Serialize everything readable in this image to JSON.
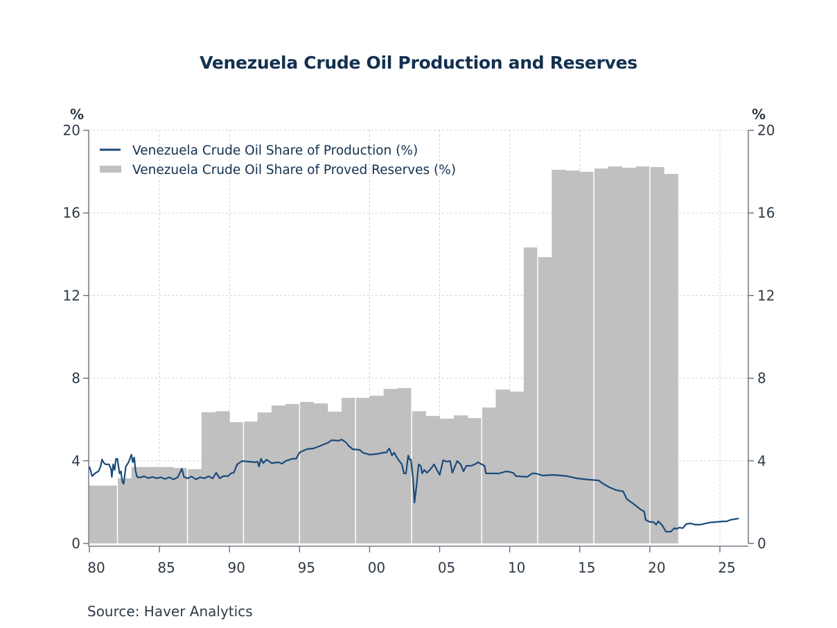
{
  "chart_data": {
    "type": "bar+line",
    "title": "Venezuela Crude Oil Production and Reserves",
    "source": "Source:  Haver Analytics",
    "left_axis_unit": "%",
    "right_axis_unit": "%",
    "ylim": [
      0,
      20
    ],
    "yticks": [
      0,
      4,
      8,
      12,
      16,
      20
    ],
    "ytick_labels": [
      "0",
      "4",
      "8",
      "12",
      "16",
      "20"
    ],
    "xlim": [
      1980,
      2027
    ],
    "xticks": [
      1980,
      1985,
      1990,
      1995,
      2000,
      2005,
      2010,
      2015,
      2020,
      2025
    ],
    "xtick_labels": [
      "80",
      "85",
      "90",
      "95",
      "00",
      "05",
      "10",
      "15",
      "20",
      "25"
    ],
    "grid": true,
    "legend_placement": "top-left",
    "colors": {
      "production": "#1a4a7a",
      "reserves": "#c0c0c0",
      "axis": "#5a6470",
      "grid": "#d0d0d0",
      "title": "#13304f"
    },
    "series": [
      {
        "name": "Venezuela Crude Oil Share of Production (%)",
        "type": "line",
        "points": [
          [
            1980.0,
            3.72
          ],
          [
            1980.2,
            3.26
          ],
          [
            1980.45,
            3.42
          ],
          [
            1980.65,
            3.49
          ],
          [
            1980.8,
            3.72
          ],
          [
            1980.9,
            4.06
          ],
          [
            1981.05,
            3.89
          ],
          [
            1981.15,
            3.83
          ],
          [
            1981.4,
            3.83
          ],
          [
            1981.55,
            3.6
          ],
          [
            1981.6,
            3.22
          ],
          [
            1981.7,
            3.83
          ],
          [
            1981.8,
            3.56
          ],
          [
            1981.9,
            4.1
          ],
          [
            1982.0,
            4.1
          ],
          [
            1982.15,
            3.39
          ],
          [
            1982.25,
            3.49
          ],
          [
            1982.35,
            2.99
          ],
          [
            1982.45,
            2.89
          ],
          [
            1982.6,
            3.72
          ],
          [
            1982.8,
            3.93
          ],
          [
            1983.0,
            4.3
          ],
          [
            1983.1,
            3.93
          ],
          [
            1983.2,
            4.16
          ],
          [
            1983.3,
            3.49
          ],
          [
            1983.4,
            3.22
          ],
          [
            1983.6,
            3.19
          ],
          [
            1983.9,
            3.25
          ],
          [
            1984.2,
            3.16
          ],
          [
            1984.5,
            3.22
          ],
          [
            1984.8,
            3.15
          ],
          [
            1985.1,
            3.2
          ],
          [
            1985.4,
            3.12
          ],
          [
            1985.7,
            3.2
          ],
          [
            1986.0,
            3.1
          ],
          [
            1986.3,
            3.2
          ],
          [
            1986.6,
            3.62
          ],
          [
            1986.75,
            3.22
          ],
          [
            1987.0,
            3.15
          ],
          [
            1987.3,
            3.24
          ],
          [
            1987.6,
            3.1
          ],
          [
            1987.9,
            3.2
          ],
          [
            1988.2,
            3.15
          ],
          [
            1988.5,
            3.25
          ],
          [
            1988.8,
            3.15
          ],
          [
            1989.05,
            3.42
          ],
          [
            1989.3,
            3.15
          ],
          [
            1989.55,
            3.26
          ],
          [
            1989.9,
            3.26
          ],
          [
            1990.1,
            3.39
          ],
          [
            1990.3,
            3.42
          ],
          [
            1990.55,
            3.83
          ],
          [
            1990.9,
            3.99
          ],
          [
            1991.4,
            3.96
          ],
          [
            1991.8,
            3.93
          ],
          [
            1992.0,
            3.96
          ],
          [
            1992.1,
            3.72
          ],
          [
            1992.25,
            4.1
          ],
          [
            1992.4,
            3.89
          ],
          [
            1992.65,
            4.06
          ],
          [
            1993.0,
            3.89
          ],
          [
            1993.5,
            3.93
          ],
          [
            1993.75,
            3.86
          ],
          [
            1994.0,
            3.99
          ],
          [
            1994.5,
            4.1
          ],
          [
            1994.75,
            4.1
          ],
          [
            1995.0,
            4.4
          ],
          [
            1995.5,
            4.56
          ],
          [
            1996.0,
            4.6
          ],
          [
            1996.5,
            4.73
          ],
          [
            1997.0,
            4.87
          ],
          [
            1997.3,
            5.0
          ],
          [
            1997.8,
            4.97
          ],
          [
            1998.0,
            5.03
          ],
          [
            1998.3,
            4.9
          ],
          [
            1998.5,
            4.73
          ],
          [
            1998.8,
            4.56
          ],
          [
            1999.3,
            4.53
          ],
          [
            1999.5,
            4.4
          ],
          [
            2000.0,
            4.3
          ],
          [
            2000.5,
            4.33
          ],
          [
            2001.0,
            4.4
          ],
          [
            2001.2,
            4.4
          ],
          [
            2001.4,
            4.6
          ],
          [
            2001.6,
            4.26
          ],
          [
            2001.75,
            4.4
          ],
          [
            2002.0,
            4.1
          ],
          [
            2002.3,
            3.83
          ],
          [
            2002.45,
            3.39
          ],
          [
            2002.6,
            3.39
          ],
          [
            2002.75,
            4.26
          ],
          [
            2002.85,
            4.06
          ],
          [
            2002.95,
            4.06
          ],
          [
            2003.1,
            3.15
          ],
          [
            2003.2,
            1.98
          ],
          [
            2003.35,
            2.82
          ],
          [
            2003.5,
            3.83
          ],
          [
            2003.65,
            3.76
          ],
          [
            2003.75,
            3.39
          ],
          [
            2003.9,
            3.56
          ],
          [
            2004.1,
            3.42
          ],
          [
            2004.35,
            3.6
          ],
          [
            2004.6,
            3.83
          ],
          [
            2004.8,
            3.56
          ],
          [
            2005.0,
            3.32
          ],
          [
            2005.25,
            4.03
          ],
          [
            2005.5,
            3.96
          ],
          [
            2005.75,
            3.99
          ],
          [
            2005.9,
            3.42
          ],
          [
            2006.25,
            3.99
          ],
          [
            2006.5,
            3.83
          ],
          [
            2006.7,
            3.49
          ],
          [
            2006.9,
            3.76
          ],
          [
            2007.25,
            3.76
          ],
          [
            2007.5,
            3.83
          ],
          [
            2007.75,
            3.93
          ],
          [
            2008.0,
            3.83
          ],
          [
            2008.2,
            3.76
          ],
          [
            2008.3,
            3.39
          ],
          [
            2008.75,
            3.39
          ],
          [
            2009.25,
            3.39
          ],
          [
            2009.75,
            3.49
          ],
          [
            2010.0,
            3.46
          ],
          [
            2010.25,
            3.42
          ],
          [
            2010.45,
            3.26
          ],
          [
            2011.25,
            3.22
          ],
          [
            2011.6,
            3.39
          ],
          [
            2011.85,
            3.39
          ],
          [
            2012.35,
            3.29
          ],
          [
            2013.1,
            3.32
          ],
          [
            2014.1,
            3.26
          ],
          [
            2014.8,
            3.15
          ],
          [
            2015.6,
            3.09
          ],
          [
            2016.35,
            3.05
          ],
          [
            2016.6,
            2.92
          ],
          [
            2017.1,
            2.72
          ],
          [
            2017.6,
            2.58
          ],
          [
            2018.1,
            2.52
          ],
          [
            2018.35,
            2.15
          ],
          [
            2018.85,
            1.91
          ],
          [
            2019.35,
            1.64
          ],
          [
            2019.6,
            1.54
          ],
          [
            2019.7,
            1.14
          ],
          [
            2020.0,
            1.04
          ],
          [
            2020.25,
            1.04
          ],
          [
            2020.45,
            0.91
          ],
          [
            2020.6,
            1.07
          ],
          [
            2020.85,
            0.91
          ],
          [
            2021.15,
            0.57
          ],
          [
            2021.5,
            0.57
          ],
          [
            2021.75,
            0.74
          ],
          [
            2021.9,
            0.7
          ],
          [
            2022.1,
            0.77
          ],
          [
            2022.35,
            0.74
          ],
          [
            2022.6,
            0.94
          ],
          [
            2022.9,
            0.97
          ],
          [
            2023.25,
            0.91
          ],
          [
            2023.6,
            0.91
          ],
          [
            2024.0,
            0.97
          ],
          [
            2024.25,
            1.01
          ],
          [
            2024.75,
            1.04
          ],
          [
            2025.25,
            1.07
          ],
          [
            2025.5,
            1.07
          ],
          [
            2025.75,
            1.14
          ],
          [
            2026.35,
            1.21
          ]
        ]
      },
      {
        "name": "Venezuela Crude Oil Share of Proved Reserves (%)",
        "type": "bar",
        "years": [
          1980,
          1981,
          1982,
          1983,
          1984,
          1985,
          1986,
          1987,
          1988,
          1989,
          1990,
          1991,
          1992,
          1993,
          1994,
          1995,
          1996,
          1997,
          1998,
          1999,
          2000,
          2001,
          2002,
          2003,
          2004,
          2005,
          2006,
          2007,
          2008,
          2009,
          2010,
          2011,
          2012,
          2013,
          2014,
          2015,
          2016,
          2017,
          2018,
          2019,
          2020,
          2021
        ],
        "values": [
          2.8,
          2.8,
          3.15,
          3.7,
          3.7,
          3.7,
          3.65,
          3.6,
          6.35,
          6.4,
          5.87,
          5.9,
          6.34,
          6.68,
          6.75,
          6.85,
          6.78,
          6.38,
          7.05,
          7.05,
          7.15,
          7.48,
          7.52,
          6.4,
          6.17,
          6.04,
          6.2,
          6.07,
          6.58,
          7.45,
          7.35,
          14.33,
          13.86,
          18.09,
          18.05,
          17.99,
          18.15,
          18.25,
          18.19,
          18.25,
          18.22,
          17.89
        ],
        "separator_after_years": [
          1981,
          1986,
          1990,
          1994,
          1998,
          2002,
          2007,
          2011,
          2015,
          2019
        ]
      }
    ]
  }
}
